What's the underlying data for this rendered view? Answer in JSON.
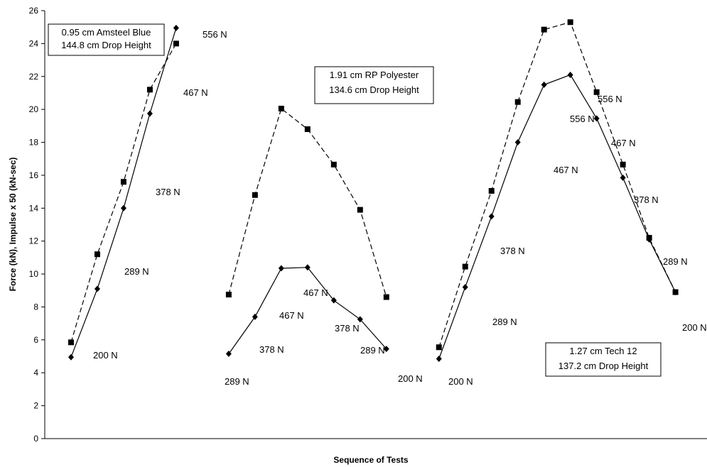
{
  "chart_data": {
    "type": "line",
    "xlabel": "Sequence of Tests",
    "ylabel": "Force (kN), Impulse x 50 (kN-sec)",
    "ylim": [
      0,
      26
    ],
    "yticks": [
      0,
      2,
      4,
      6,
      8,
      10,
      12,
      14,
      16,
      18,
      20,
      22,
      24,
      26
    ],
    "grid": false,
    "legend": "none",
    "groups": [
      {
        "box": [
          "0.95 cm Amsteel Blue",
          "144.8 cm Drop Height"
        ],
        "solid": [
          [
            1,
            4.95
          ],
          [
            2,
            9.1
          ],
          [
            3,
            14.0
          ],
          [
            4,
            19.75
          ],
          [
            5,
            24.95
          ]
        ],
        "dashed": [
          [
            1,
            5.85
          ],
          [
            2,
            11.2
          ],
          [
            3,
            15.6
          ],
          [
            4,
            21.2
          ],
          [
            5,
            24.0
          ]
        ],
        "load_labels": [
          "200 N",
          "289 N",
          "378 N",
          "467 N",
          "556 N"
        ]
      },
      {
        "box": [
          "1.91 cm RP Polyester",
          "134.6 cm Drop Height"
        ],
        "solid": [
          [
            7,
            5.15
          ],
          [
            8,
            7.4
          ],
          [
            9,
            10.35
          ],
          [
            10,
            10.4
          ],
          [
            11,
            8.4
          ],
          [
            12,
            7.25
          ],
          [
            13,
            5.45
          ]
        ],
        "dashed": [
          [
            7,
            8.75
          ],
          [
            8,
            14.8
          ],
          [
            9,
            20.05
          ],
          [
            10,
            18.8
          ],
          [
            11,
            16.65
          ],
          [
            12,
            13.9
          ],
          [
            13,
            8.6
          ]
        ],
        "load_labels": [
          "289 N",
          "378 N",
          "467 N",
          "467 N",
          "378 N",
          "289 N",
          "200 N"
        ]
      },
      {
        "box": [
          "1.27 cm Tech 12",
          "137.2 cm Drop Height"
        ],
        "solid": [
          [
            15,
            4.85
          ],
          [
            16,
            9.2
          ],
          [
            17,
            13.5
          ],
          [
            18,
            18.0
          ],
          [
            19,
            21.5
          ],
          [
            20,
            22.1
          ],
          [
            21,
            19.45
          ],
          [
            22,
            15.85
          ],
          [
            23,
            12.1
          ],
          [
            24,
            8.9
          ]
        ],
        "dashed": [
          [
            15,
            5.55
          ],
          [
            16,
            10.45
          ],
          [
            17,
            15.05
          ],
          [
            18,
            20.45
          ],
          [
            19,
            24.85
          ],
          [
            20,
            25.3
          ],
          [
            21,
            21.05
          ],
          [
            22,
            16.65
          ],
          [
            23,
            12.2
          ],
          [
            24,
            8.9
          ]
        ],
        "load_labels": [
          "200 N",
          "289 N",
          "378 N",
          "467 N",
          "556 N",
          "556 N",
          "467 N",
          "378 N",
          "289 N",
          "200 N"
        ]
      }
    ],
    "series_colors": {
      "line": "#000000"
    }
  }
}
